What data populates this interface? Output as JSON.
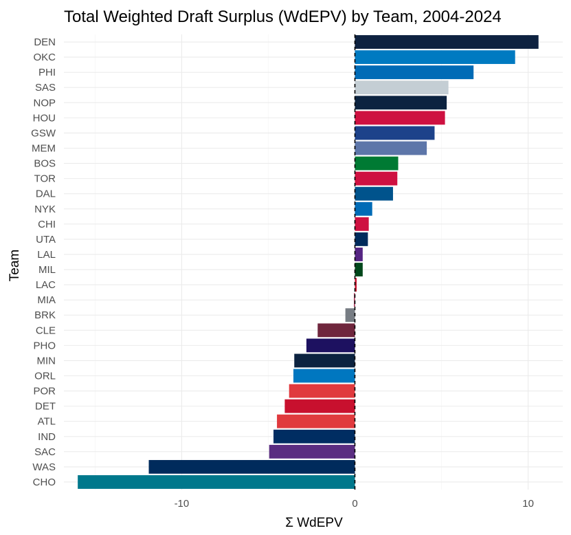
{
  "chart_data": {
    "type": "bar",
    "orientation": "horizontal",
    "title": "Total Weighted Draft Surplus (WdEPV) by Team, 2004-2024",
    "xlabel": "Σ WdEPV",
    "ylabel": "Team",
    "xlim": [
      -16.8,
      12.0
    ],
    "xticks": [
      -10,
      0,
      10
    ],
    "grid": true,
    "zero_line": "dashed",
    "categories": [
      "DEN",
      "OKC",
      "PHI",
      "SAS",
      "NOP",
      "HOU",
      "GSW",
      "MEM",
      "BOS",
      "TOR",
      "DAL",
      "NYK",
      "CHI",
      "UTA",
      "LAL",
      "MIL",
      "LAC",
      "MIA",
      "BRK",
      "CLE",
      "PHO",
      "MIN",
      "ORL",
      "POR",
      "DET",
      "ATL",
      "IND",
      "SAC",
      "WAS",
      "CHO"
    ],
    "values": [
      10.6,
      9.25,
      6.85,
      5.4,
      5.3,
      5.2,
      4.6,
      4.15,
      2.5,
      2.45,
      2.2,
      1.0,
      0.8,
      0.75,
      0.45,
      0.45,
      0.1,
      -0.05,
      -0.55,
      -2.15,
      -2.8,
      -3.5,
      -3.55,
      -3.8,
      -4.05,
      -4.5,
      -4.7,
      -4.95,
      -11.9,
      -16.0
    ],
    "colors": [
      "#0E2240",
      "#007AC1",
      "#006BB6",
      "#C4CED4",
      "#0C2340",
      "#CE1141",
      "#1D428A",
      "#5D76A9",
      "#007A33",
      "#CE1141",
      "#00538C",
      "#006BB6",
      "#CE1141",
      "#002B5C",
      "#552583",
      "#00471B",
      "#C8102E",
      "#98002E",
      "#777D84",
      "#6F263D",
      "#1D1160",
      "#0C2340",
      "#0077C0",
      "#E03A3E",
      "#C8102E",
      "#E03A3E",
      "#002D62",
      "#5A2D81",
      "#002B5C",
      "#00788C"
    ]
  }
}
